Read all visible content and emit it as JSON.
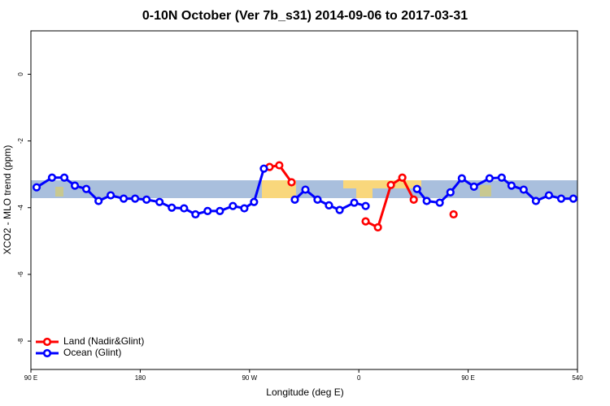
{
  "chart_data": {
    "type": "line",
    "title": "0-10N October (Ver 7b_s31)   2014-09-06 to 2017-03-31",
    "xlabel": "Longitude (deg E)",
    "ylabel": "XCO2 - MLO trend (ppm)",
    "xlim": [
      90,
      540
    ],
    "ylim": [
      -8.85,
      1.3
    ],
    "xticks": [
      {
        "value": 90,
        "label": "90 E"
      },
      180,
      {
        "value": 270,
        "label": "90 W"
      },
      {
        "value": 360,
        "label": "0"
      },
      {
        "value": 450,
        "label": "90 E"
      },
      540
    ],
    "yticks": [
      0,
      -2,
      -4,
      -6,
      -8
    ],
    "legend": "bottom-left",
    "series": [
      {
        "name": "Land (Nadir&Glint)",
        "color": "#ff0000",
        "x": [
          286.5,
          294.5,
          304.6,
          null,
          365.6,
          375.7,
          386.4,
          395.8,
          405.2,
          null,
          438
        ],
        "values": [
          -2.78,
          -2.73,
          -3.24,
          null,
          -4.41,
          -4.59,
          -3.32,
          -3.1,
          -3.76,
          null,
          -4.2
        ]
      },
      {
        "name": "Ocean (Glint)",
        "color": "#0000ff",
        "x": [
          94.7,
          107.4,
          117.5,
          126.2,
          135.6,
          145.7,
          155.7,
          166.4,
          175.8,
          185.2,
          195.9,
          206,
          216.1,
          225.5,
          235.5,
          245.6,
          256.3,
          265.7,
          273.7,
          281.8,
          null,
          307.3,
          316,
          326,
          335.4,
          344.2,
          356.2,
          365.6,
          null,
          407.9,
          415.9,
          426.6,
          435.4,
          444.8,
          454.8,
          467.6,
          477.6,
          485.7,
          495.7,
          505.8,
          516.5,
          526.6,
          536.6
        ],
        "values": [
          -3.39,
          -3.1,
          -3.1,
          -3.34,
          -3.44,
          -3.8,
          -3.63,
          -3.73,
          -3.73,
          -3.76,
          -3.83,
          -4.0,
          -4.02,
          -4.2,
          -4.1,
          -4.1,
          -3.95,
          -4.02,
          -3.83,
          -2.83,
          null,
          -3.76,
          -3.46,
          -3.76,
          -3.93,
          -4.07,
          -3.85,
          -3.95,
          null,
          -3.44,
          -3.8,
          -3.85,
          -3.54,
          -3.12,
          -3.37,
          -3.12,
          -3.1,
          -3.34,
          -3.46,
          -3.8,
          -3.63,
          -3.73,
          -3.73
        ]
      }
    ]
  }
}
